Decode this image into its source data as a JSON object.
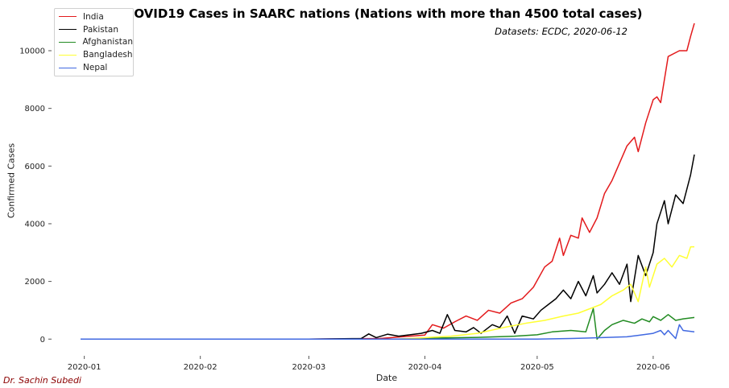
{
  "chart_data": {
    "type": "line",
    "title": "Daily COVID19 Cases in SAARC nations (Nations with more than 4500 total cases)",
    "subtitle": "Datasets: ECDC, 2020-06-12",
    "author": "Dr. Sachin Subedi",
    "xlabel": "Date",
    "ylabel": "Confirmed Cases",
    "x_ticks": [
      "2020-01",
      "2020-02",
      "2020-03",
      "2020-04",
      "2020-05",
      "2020-06"
    ],
    "y_ticks": [
      0,
      2000,
      4000,
      6000,
      8000,
      10000
    ],
    "xlim": [
      "2019-12-31",
      "2020-06-12"
    ],
    "ylim": [
      -300,
      11200
    ],
    "legend_position": "top-left",
    "grid": false,
    "series": [
      {
        "name": "India",
        "color": "#e31a1c",
        "points": [
          [
            "2019-12-31",
            0
          ],
          [
            "2020-03-01",
            0
          ],
          [
            "2020-03-20",
            20
          ],
          [
            "2020-03-28",
            100
          ],
          [
            "2020-04-01",
            140
          ],
          [
            "2020-04-03",
            500
          ],
          [
            "2020-04-06",
            380
          ],
          [
            "2020-04-09",
            600
          ],
          [
            "2020-04-12",
            800
          ],
          [
            "2020-04-15",
            650
          ],
          [
            "2020-04-18",
            1000
          ],
          [
            "2020-04-21",
            900
          ],
          [
            "2020-04-24",
            1250
          ],
          [
            "2020-04-27",
            1400
          ],
          [
            "2020-04-30",
            1800
          ],
          [
            "2020-05-03",
            2500
          ],
          [
            "2020-05-05",
            2700
          ],
          [
            "2020-05-07",
            3500
          ],
          [
            "2020-05-08",
            2900
          ],
          [
            "2020-05-10",
            3600
          ],
          [
            "2020-05-12",
            3500
          ],
          [
            "2020-05-13",
            4200
          ],
          [
            "2020-05-15",
            3700
          ],
          [
            "2020-05-17",
            4200
          ],
          [
            "2020-05-19",
            5050
          ],
          [
            "2020-05-21",
            5500
          ],
          [
            "2020-05-23",
            6100
          ],
          [
            "2020-05-25",
            6700
          ],
          [
            "2020-05-27",
            7000
          ],
          [
            "2020-05-28",
            6500
          ],
          [
            "2020-05-30",
            7500
          ],
          [
            "2020-06-01",
            8300
          ],
          [
            "2020-06-02",
            8400
          ],
          [
            "2020-06-03",
            8200
          ],
          [
            "2020-06-05",
            9800
          ],
          [
            "2020-06-08",
            10000
          ],
          [
            "2020-06-10",
            10000
          ],
          [
            "2020-06-11",
            10500
          ],
          [
            "2020-06-12",
            10950
          ]
        ]
      },
      {
        "name": "Pakistan",
        "color": "#000000",
        "points": [
          [
            "2019-12-31",
            0
          ],
          [
            "2020-03-01",
            0
          ],
          [
            "2020-03-15",
            20
          ],
          [
            "2020-03-17",
            180
          ],
          [
            "2020-03-19",
            50
          ],
          [
            "2020-03-22",
            170
          ],
          [
            "2020-03-25",
            100
          ],
          [
            "2020-03-28",
            150
          ],
          [
            "2020-03-31",
            200
          ],
          [
            "2020-04-03",
            300
          ],
          [
            "2020-04-05",
            200
          ],
          [
            "2020-04-07",
            850
          ],
          [
            "2020-04-09",
            300
          ],
          [
            "2020-04-12",
            250
          ],
          [
            "2020-04-14",
            400
          ],
          [
            "2020-04-16",
            200
          ],
          [
            "2020-04-19",
            500
          ],
          [
            "2020-04-21",
            400
          ],
          [
            "2020-04-23",
            800
          ],
          [
            "2020-04-25",
            200
          ],
          [
            "2020-04-27",
            800
          ],
          [
            "2020-04-30",
            700
          ],
          [
            "2020-05-02",
            1000
          ],
          [
            "2020-05-04",
            1200
          ],
          [
            "2020-05-06",
            1400
          ],
          [
            "2020-05-08",
            1700
          ],
          [
            "2020-05-10",
            1400
          ],
          [
            "2020-05-12",
            2000
          ],
          [
            "2020-05-14",
            1500
          ],
          [
            "2020-05-16",
            2200
          ],
          [
            "2020-05-17",
            1600
          ],
          [
            "2020-05-19",
            1900
          ],
          [
            "2020-05-21",
            2300
          ],
          [
            "2020-05-23",
            1900
          ],
          [
            "2020-05-25",
            2600
          ],
          [
            "2020-05-26",
            1300
          ],
          [
            "2020-05-28",
            2900
          ],
          [
            "2020-05-30",
            2200
          ],
          [
            "2020-06-01",
            3000
          ],
          [
            "2020-06-02",
            4000
          ],
          [
            "2020-06-04",
            4800
          ],
          [
            "2020-06-05",
            4000
          ],
          [
            "2020-06-07",
            5000
          ],
          [
            "2020-06-09",
            4700
          ],
          [
            "2020-06-11",
            5700
          ],
          [
            "2020-06-12",
            6400
          ]
        ]
      },
      {
        "name": "Afghanistan",
        "color": "#228b22",
        "points": [
          [
            "2019-12-31",
            0
          ],
          [
            "2020-03-25",
            0
          ],
          [
            "2020-04-05",
            40
          ],
          [
            "2020-04-15",
            60
          ],
          [
            "2020-04-25",
            100
          ],
          [
            "2020-05-01",
            150
          ],
          [
            "2020-05-05",
            250
          ],
          [
            "2020-05-10",
            300
          ],
          [
            "2020-05-14",
            250
          ],
          [
            "2020-05-16",
            1060
          ],
          [
            "2020-05-17",
            0
          ],
          [
            "2020-05-19",
            300
          ],
          [
            "2020-05-21",
            500
          ],
          [
            "2020-05-24",
            650
          ],
          [
            "2020-05-27",
            550
          ],
          [
            "2020-05-29",
            700
          ],
          [
            "2020-05-31",
            600
          ],
          [
            "2020-06-01",
            780
          ],
          [
            "2020-06-03",
            650
          ],
          [
            "2020-06-05",
            850
          ],
          [
            "2020-06-07",
            650
          ],
          [
            "2020-06-09",
            700
          ],
          [
            "2020-06-12",
            750
          ]
        ]
      },
      {
        "name": "Bangladesh",
        "color": "#ffff33",
        "points": [
          [
            "2019-12-31",
            0
          ],
          [
            "2020-03-25",
            0
          ],
          [
            "2020-04-08",
            100
          ],
          [
            "2020-04-15",
            200
          ],
          [
            "2020-04-22",
            400
          ],
          [
            "2020-04-28",
            550
          ],
          [
            "2020-05-03",
            650
          ],
          [
            "2020-05-08",
            800
          ],
          [
            "2020-05-12",
            900
          ],
          [
            "2020-05-15",
            1050
          ],
          [
            "2020-05-18",
            1200
          ],
          [
            "2020-05-21",
            1500
          ],
          [
            "2020-05-24",
            1700
          ],
          [
            "2020-05-26",
            1900
          ],
          [
            "2020-05-28",
            1300
          ],
          [
            "2020-05-30",
            2500
          ],
          [
            "2020-05-31",
            1800
          ],
          [
            "2020-06-02",
            2600
          ],
          [
            "2020-06-04",
            2800
          ],
          [
            "2020-06-06",
            2500
          ],
          [
            "2020-06-08",
            2900
          ],
          [
            "2020-06-10",
            2800
          ],
          [
            "2020-06-11",
            3200
          ],
          [
            "2020-06-12",
            3200
          ]
        ]
      },
      {
        "name": "Nepal",
        "color": "#4169e1",
        "points": [
          [
            "2019-12-31",
            0
          ],
          [
            "2020-05-01",
            0
          ],
          [
            "2020-05-10",
            20
          ],
          [
            "2020-05-15",
            40
          ],
          [
            "2020-05-20",
            60
          ],
          [
            "2020-05-25",
            80
          ],
          [
            "2020-05-28",
            130
          ],
          [
            "2020-06-01",
            200
          ],
          [
            "2020-06-03",
            300
          ],
          [
            "2020-06-04",
            150
          ],
          [
            "2020-06-05",
            300
          ],
          [
            "2020-06-07",
            20
          ],
          [
            "2020-06-08",
            500
          ],
          [
            "2020-06-09",
            300
          ],
          [
            "2020-06-12",
            250
          ]
        ]
      }
    ]
  }
}
